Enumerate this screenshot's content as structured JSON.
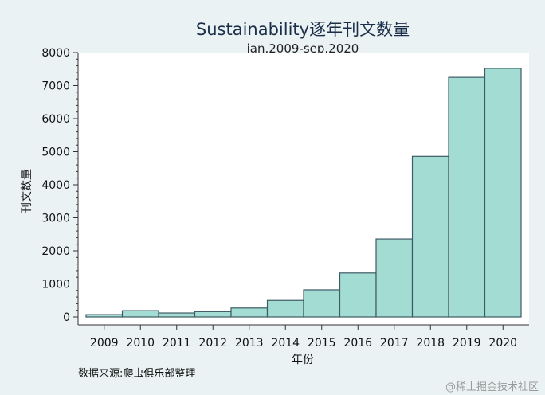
{
  "chart_data": {
    "type": "bar",
    "title": "Sustainability逐年刊文数量",
    "subtitle": "jan.2009-sep.2020",
    "xlabel": "年份",
    "ylabel": "刊文数量",
    "categories": [
      "2009",
      "2010",
      "2011",
      "2012",
      "2013",
      "2014",
      "2015",
      "2016",
      "2017",
      "2018",
      "2019",
      "2020"
    ],
    "values": [
      70,
      190,
      120,
      160,
      270,
      500,
      820,
      1330,
      2360,
      4860,
      7250,
      7520
    ],
    "ylim": [
      0,
      8000
    ],
    "yticks": [
      "0",
      "1000",
      "2000",
      "3000",
      "4000",
      "5000",
      "6000",
      "7000",
      "8000"
    ],
    "grid": false,
    "legend": "none",
    "bar_color": "#a3dcd3",
    "bar_edge_color": "#3f5a66"
  },
  "footnote": "数据来源:爬虫俱乐部整理",
  "watermark": "@稀土掘金技术社区"
}
